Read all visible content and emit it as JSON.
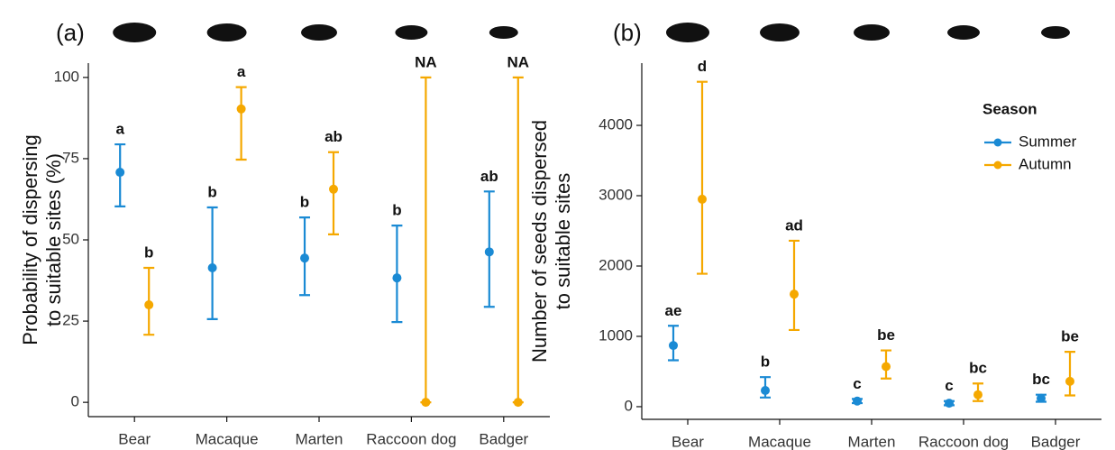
{
  "chart_data": [
    {
      "type": "errorbar",
      "title": "(a)",
      "ylabel": [
        "Probability of dispersing",
        "to suitable sites (%)"
      ],
      "categories": [
        "Bear",
        "Macaque",
        "Marten",
        "Raccoon dog",
        "Badger"
      ],
      "ylim": [
        -4.4,
        104.4
      ],
      "yticks": [
        0,
        25,
        50,
        75,
        100
      ],
      "series": [
        {
          "name": "Summer",
          "color": "#1a8ad4",
          "values": [
            70.8,
            41.4,
            44.4,
            38.3,
            46.3
          ],
          "lower": [
            60.3,
            25.6,
            33.0,
            24.7,
            29.4
          ],
          "upper": [
            79.4,
            60.0,
            56.9,
            54.4,
            64.9
          ],
          "letters": [
            "a",
            "b",
            "b",
            "b",
            "ab"
          ]
        },
        {
          "name": "Autumn",
          "color": "#f5a800",
          "values": [
            30.0,
            90.3,
            65.6,
            0,
            0
          ],
          "lower": [
            20.8,
            74.7,
            51.7,
            0,
            0
          ],
          "upper": [
            41.4,
            97.0,
            77.0,
            100,
            100
          ],
          "letters": [
            "b",
            "a",
            "ab",
            "NA",
            "NA"
          ]
        }
      ]
    },
    {
      "type": "errorbar",
      "title": "(b)",
      "ylabel": [
        "Number of seeds dispersed",
        "to suitable sites"
      ],
      "categories": [
        "Bear",
        "Macaque",
        "Marten",
        "Raccoon dog",
        "Badger"
      ],
      "ylim": [
        -180,
        4885
      ],
      "yticks": [
        0,
        1000,
        2000,
        3000,
        4000
      ],
      "legend": "right",
      "legend_title": "Season",
      "series": [
        {
          "name": "Summer",
          "color": "#1a8ad4",
          "values": [
            870,
            230,
            80,
            50,
            120
          ],
          "lower": [
            660,
            130,
            50,
            20,
            70
          ],
          "upper": [
            1150,
            420,
            110,
            80,
            170
          ],
          "letters": [
            "ae",
            "b",
            "c",
            "c",
            "bc"
          ]
        },
        {
          "name": "Autumn",
          "color": "#f5a800",
          "values": [
            2950,
            1600,
            570,
            170,
            360
          ],
          "lower": [
            1890,
            1090,
            400,
            80,
            160
          ],
          "upper": [
            4620,
            2360,
            800,
            330,
            780
          ],
          "letters": [
            "d",
            "ad",
            "be",
            "bc",
            "be"
          ]
        }
      ]
    }
  ]
}
